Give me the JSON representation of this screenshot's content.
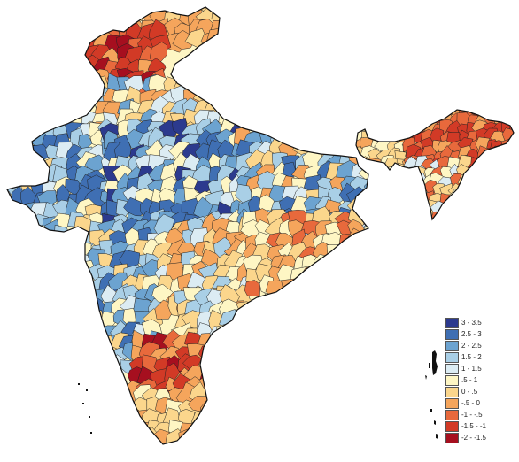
{
  "map": {
    "legend": [
      {
        "label": "3 - 3.5",
        "color": "#2c3a8e"
      },
      {
        "label": "2.5 - 3",
        "color": "#3f6fb3"
      },
      {
        "label": "2 - 2.5",
        "color": "#6ca3d0"
      },
      {
        "label": "1.5 - 2",
        "color": "#a9cfe6"
      },
      {
        "label": "1 - 1.5",
        "color": "#dcecf3"
      },
      {
        "label": ".5 - 1",
        "color": "#fef6c4"
      },
      {
        "label": "0 - .5",
        "color": "#fbd68c"
      },
      {
        "label": "-.5 - 0",
        "color": "#f5a55c"
      },
      {
        "label": "-1 - -.5",
        "color": "#e8693c"
      },
      {
        "label": "-1.5 - -1",
        "color": "#d23a26"
      },
      {
        "label": "-2 - -1.5",
        "color": "#a60f1f"
      }
    ]
  }
}
